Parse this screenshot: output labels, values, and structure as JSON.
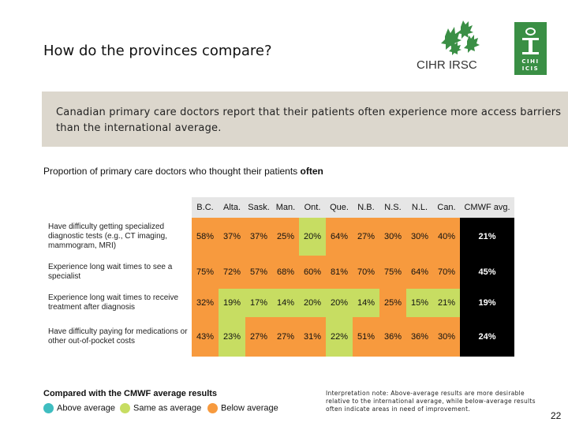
{
  "header": {
    "title": "How do the provinces compare?",
    "cihr_logo_text": "CIHR IRSC",
    "cihi_logo_text_top": "CIHI",
    "cihi_logo_text_bottom": "ICIS"
  },
  "banner": {
    "text": "Canadian primary care doctors report that their patients often experience more access barriers than the international average."
  },
  "subtitle": {
    "prefix": "Proportion of primary care doctors who thought their patients ",
    "emphasis": "often"
  },
  "table": {
    "columns": [
      "B.C.",
      "Alta.",
      "Sask.",
      "Man.",
      "Ont.",
      "Que.",
      "N.B.",
      "N.S.",
      "N.L.",
      "Can.",
      "CMWF avg."
    ],
    "rows": [
      {
        "label": "Have difficulty getting specialized diagnostic tests (e.g., CT imaging, mammogram, MRI)",
        "values": [
          "58%",
          "37%",
          "37%",
          "25%",
          "20%",
          "64%",
          "27%",
          "30%",
          "30%",
          "40%",
          "21%"
        ],
        "status": [
          "up",
          "up",
          "up",
          "up",
          "na",
          "up",
          "up",
          "up",
          "up",
          "up",
          "ref"
        ]
      },
      {
        "label": "Experience long wait times to see a specialist",
        "values": [
          "75%",
          "72%",
          "57%",
          "68%",
          "60%",
          "81%",
          "70%",
          "75%",
          "64%",
          "70%",
          "45%"
        ],
        "status": [
          "up",
          "up",
          "up",
          "up",
          "up",
          "up",
          "up",
          "up",
          "up",
          "up",
          "ref"
        ]
      },
      {
        "label": "Experience long wait times to receive treatment after diagnosis",
        "values": [
          "32%",
          "19%",
          "17%",
          "14%",
          "20%",
          "20%",
          "14%",
          "25%",
          "15%",
          "21%",
          "19%"
        ],
        "status": [
          "up",
          "na",
          "na",
          "na",
          "na",
          "na",
          "na",
          "up",
          "na",
          "na",
          "ref"
        ]
      },
      {
        "label": "Have difficulty paying for medications or other out-of-pocket costs",
        "values": [
          "43%",
          "23%",
          "27%",
          "27%",
          "31%",
          "22%",
          "51%",
          "36%",
          "36%",
          "30%",
          "24%"
        ],
        "status": [
          "up",
          "na",
          "up",
          "up",
          "up",
          "na",
          "up",
          "up",
          "up",
          "up",
          "ref"
        ]
      }
    ]
  },
  "legend": {
    "title": "Compared with the CMWF average results",
    "items": [
      {
        "label": "Above average",
        "color": "#3fbdc0"
      },
      {
        "label": "Same as average",
        "color": "#c7dd62"
      },
      {
        "label": "Below average",
        "color": "#f79a3e"
      }
    ]
  },
  "note": {
    "text": "Interpretation note: Above-average results are more desirable relative to the international average, while below-average results often indicate areas in need of improvement."
  },
  "page_number": "22",
  "colors": {
    "below": "#f79a3e",
    "same": "#c7dd62",
    "above": "#3fbdc0",
    "reference": "#000000",
    "banner": "#dcd7cd",
    "cihi_green": "#3a8f45"
  }
}
